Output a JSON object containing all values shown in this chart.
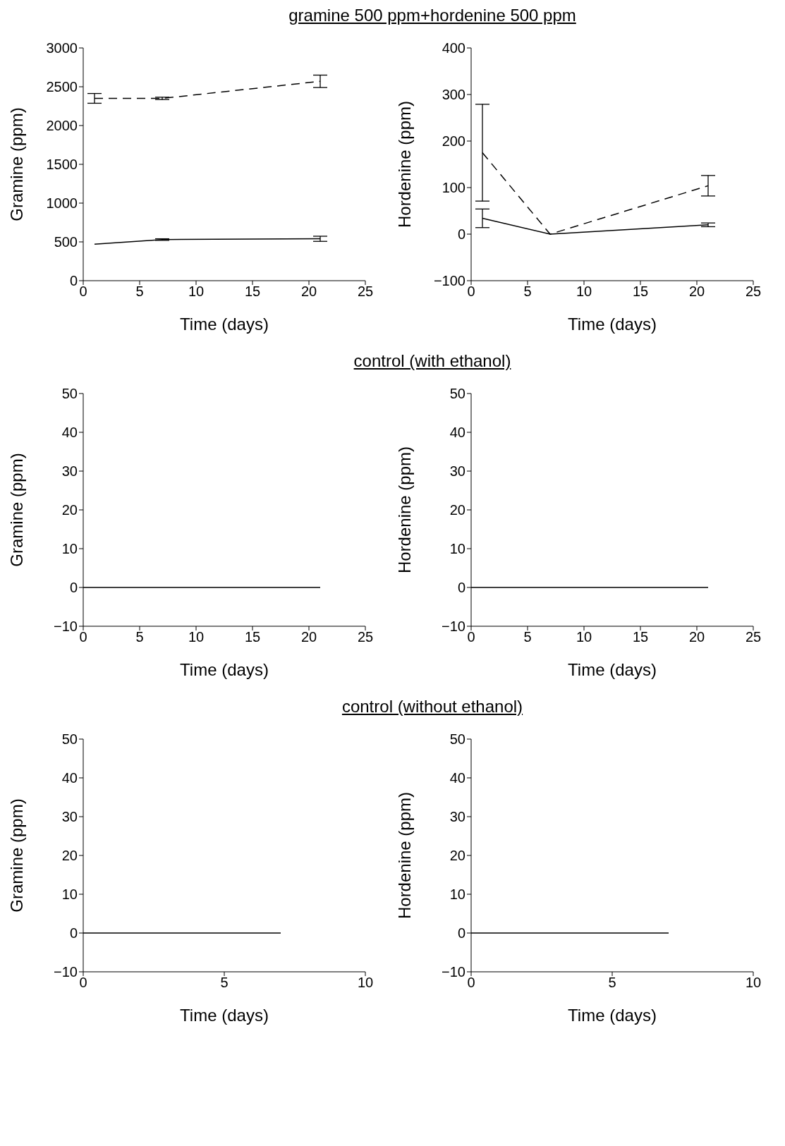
{
  "chart_data": [
    {
      "type": "line",
      "title": "gramine 500 ppm+hordenine 500 ppm",
      "xlabel": "Time (days)",
      "ylabel": "Gramine (ppm)",
      "xlim": [
        0,
        25
      ],
      "xticks": [
        0,
        5,
        10,
        15,
        20,
        25
      ],
      "ylim": [
        0,
        3000
      ],
      "yticks": [
        0,
        500,
        1000,
        1500,
        2000,
        2500,
        3000
      ],
      "marker": "none",
      "series": [
        {
          "color": "#000000",
          "line_style": "solid",
          "x": [
            1,
            7,
            21
          ],
          "values": [
            470,
            530,
            540
          ],
          "errors": [
            null,
            10,
            33
          ]
        },
        {
          "color": "#000000",
          "line_style": "dashed",
          "x": [
            1,
            7,
            21
          ],
          "values": [
            2350,
            2350,
            2570
          ],
          "errors": [
            63,
            15,
            80
          ]
        }
      ]
    },
    {
      "type": "line",
      "xlabel": "Time (days)",
      "ylabel": "Hordenine (ppm)",
      "xlim": [
        0,
        25
      ],
      "xticks": [
        0,
        5,
        10,
        15,
        20,
        25
      ],
      "ylim": [
        -100,
        400
      ],
      "yticks": [
        -100,
        0,
        100,
        200,
        300,
        400
      ],
      "marker": "none",
      "series": [
        {
          "color": "#000000",
          "line_style": "solid",
          "x": [
            1,
            7,
            21
          ],
          "values": [
            34,
            0,
            20
          ],
          "errors": [
            20,
            null,
            4
          ]
        },
        {
          "color": "#000000",
          "line_style": "dashed",
          "x": [
            1,
            7,
            21
          ],
          "values": [
            175,
            0,
            104
          ],
          "errors": [
            104,
            null,
            22
          ]
        }
      ]
    },
    {
      "type": "line",
      "title": "control (with ethanol)",
      "xlabel": "Time (days)",
      "ylabel": "Gramine (ppm)",
      "xlim": [
        0,
        25
      ],
      "xticks": [
        0,
        5,
        10,
        15,
        20,
        25
      ],
      "ylim": [
        -10,
        50
      ],
      "yticks": [
        -10,
        0,
        10,
        20,
        30,
        40,
        50
      ],
      "marker": "none",
      "series": [
        {
          "color": "#000000",
          "line_style": "solid",
          "x": [
            0,
            7,
            21
          ],
          "values": [
            0,
            0,
            0
          ]
        }
      ]
    },
    {
      "type": "line",
      "xlabel": "Time (days)",
      "ylabel": "Hordenine (ppm)",
      "xlim": [
        0,
        25
      ],
      "xticks": [
        0,
        5,
        10,
        15,
        20,
        25
      ],
      "ylim": [
        -10,
        50
      ],
      "yticks": [
        -10,
        0,
        10,
        20,
        30,
        40,
        50
      ],
      "marker": "none",
      "series": [
        {
          "color": "#000000",
          "line_style": "solid",
          "x": [
            0,
            7,
            21
          ],
          "values": [
            0,
            0,
            0
          ]
        }
      ]
    },
    {
      "type": "line",
      "title": "control (without ethanol)",
      "xlabel": "Time (days)",
      "ylabel": "Gramine (ppm)",
      "xlim": [
        0,
        10
      ],
      "xticks": [
        0,
        5,
        10
      ],
      "ylim": [
        -10,
        50
      ],
      "yticks": [
        -10,
        0,
        10,
        20,
        30,
        40,
        50
      ],
      "marker": "none",
      "series": [
        {
          "color": "#000000",
          "line_style": "solid",
          "x": [
            0,
            7
          ],
          "values": [
            0,
            0
          ]
        }
      ]
    },
    {
      "type": "line",
      "xlabel": "Time (days)",
      "ylabel": "Hordenine (ppm)",
      "xlim": [
        0,
        10
      ],
      "xticks": [
        0,
        5,
        10
      ],
      "ylim": [
        -10,
        50
      ],
      "yticks": [
        -10,
        0,
        10,
        20,
        30,
        40,
        50
      ],
      "marker": "none",
      "series": [
        {
          "color": "#000000",
          "line_style": "solid",
          "x": [
            0,
            7
          ],
          "values": [
            0,
            0
          ]
        }
      ]
    }
  ]
}
